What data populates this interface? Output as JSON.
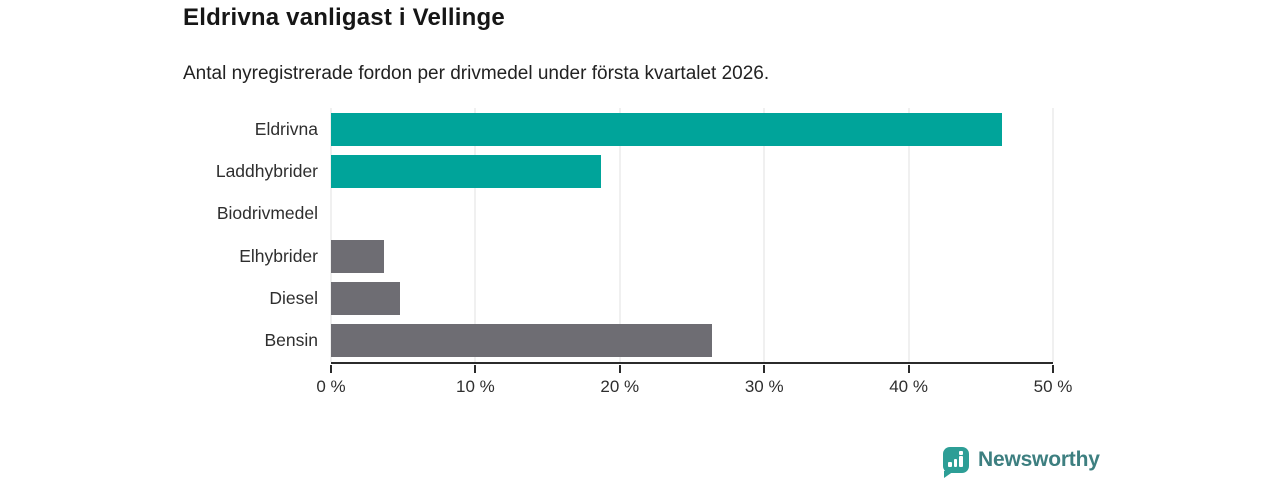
{
  "header": {
    "title": "Eldrivna vanligast i Vellinge",
    "subtitle": "Antal nyregistrerade fordon per drivmedel under första kvartalet 2026."
  },
  "chart_data": {
    "type": "bar",
    "orientation": "horizontal",
    "title": "Eldrivna vanligast i Vellinge",
    "subtitle": "Antal nyregistrerade fordon per drivmedel under första kvartalet 2026.",
    "categories": [
      "Eldrivna",
      "Laddhybrider",
      "Biodrivmedel",
      "Elhybrider",
      "Diesel",
      "Bensin"
    ],
    "values": [
      46.5,
      18.7,
      0,
      3.7,
      4.8,
      26.4
    ],
    "unit": "%",
    "xlim": [
      0,
      50
    ],
    "x_ticks": [
      "0 %",
      "10 %",
      "20 %",
      "30 %",
      "40 %",
      "50 %"
    ],
    "x_tick_values": [
      0,
      10,
      20,
      30,
      40,
      50
    ],
    "grid": true,
    "legend": "none",
    "bar_colors": [
      "#00a49a",
      "#00a49a",
      "#00a49a",
      "#6e6d73",
      "#6e6d73",
      "#6e6d73"
    ]
  },
  "colors": {
    "accent_teal": "#00a49a",
    "neutral_gray": "#6e6d73",
    "axis": "#2b2b2b",
    "gridline": "#e2e2e2",
    "logo_icon": "#2d9e96",
    "logo_text": "#3d7f80"
  },
  "branding": {
    "logo_text": "Newsworthy",
    "logo_icon": "bar-chart-bubble-icon"
  }
}
